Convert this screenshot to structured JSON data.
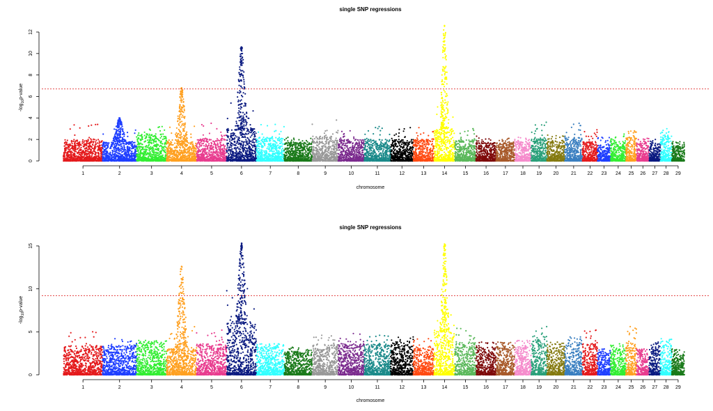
{
  "chart_data": [
    {
      "type": "scatter",
      "title": "single SNP regressions",
      "xlabel": "chromosome",
      "ylabel": "-log10p-value",
      "ylim": [
        0,
        12
      ],
      "yticks": [
        0,
        2,
        4,
        6,
        8,
        10,
        12
      ],
      "threshold": 6.7,
      "categories": [
        "1",
        "2",
        "3",
        "4",
        "5",
        "6",
        "7",
        "8",
        "9",
        "10",
        "11",
        "12",
        "13",
        "14",
        "15",
        "16",
        "17",
        "18",
        "19",
        "20",
        "21",
        "22",
        "23",
        "24",
        "25",
        "26",
        "27",
        "28",
        "29"
      ],
      "peaks": [
        3.4,
        4.0,
        3.2,
        6.8,
        3.5,
        10.6,
        3.4,
        2.2,
        3.8,
        2.8,
        3.2,
        3.1,
        3.1,
        12.6,
        3.0,
        2.3,
        2.1,
        2.2,
        3.6,
        2.4,
        3.5,
        2.9,
        2.2,
        2.5,
        2.8,
        2.1,
        2.0,
        3.0,
        1.8
      ],
      "baseline": [
        2.0,
        1.8,
        2.5,
        1.8,
        2.1,
        3.0,
        2.2,
        1.8,
        2.3,
        2.0,
        2.0,
        2.0,
        2.0,
        3.0,
        2.0,
        1.7,
        1.7,
        1.8,
        2.2,
        1.9,
        2.2,
        1.8,
        1.5,
        1.8,
        2.2,
        1.7,
        1.5,
        2.3,
        1.5
      ]
    },
    {
      "type": "scatter",
      "title": "single SNP regressions",
      "xlabel": "chromosome",
      "ylabel": "-log10p-value",
      "ylim": [
        0,
        15
      ],
      "yticks": [
        0,
        5,
        10,
        15
      ],
      "threshold": 9.2,
      "categories": [
        "1",
        "2",
        "3",
        "4",
        "5",
        "6",
        "7",
        "8",
        "9",
        "10",
        "11",
        "12",
        "13",
        "14",
        "15",
        "16",
        "17",
        "18",
        "19",
        "20",
        "21",
        "22",
        "23",
        "24",
        "25",
        "26",
        "27",
        "28",
        "29"
      ],
      "peaks": [
        5.0,
        4.2,
        4.0,
        12.6,
        5.2,
        15.3,
        3.6,
        3.2,
        4.6,
        4.8,
        4.6,
        4.4,
        4.2,
        15.2,
        5.4,
        3.8,
        3.8,
        4.0,
        5.6,
        3.8,
        4.4,
        5.2,
        3.0,
        3.6,
        5.6,
        3.0,
        3.8,
        4.2,
        3.0
      ],
      "baseline": [
        3.4,
        3.4,
        3.8,
        3.2,
        3.6,
        6.0,
        3.4,
        2.8,
        3.6,
        3.6,
        3.6,
        3.8,
        3.2,
        5.0,
        3.8,
        3.2,
        3.4,
        3.4,
        4.2,
        3.4,
        3.8,
        3.6,
        2.6,
        3.0,
        3.8,
        2.8,
        3.2,
        3.6,
        2.6
      ]
    }
  ],
  "colors": [
    "#e41a1c",
    "#1f3fff",
    "#33ee33",
    "#ffa020",
    "#e83d8f",
    "#0a1a80",
    "#33ffff",
    "#1a7a1a",
    "#999999",
    "#7b2b8e",
    "#1b8a8a",
    "#000000",
    "#ff4a12",
    "#ffff00",
    "#5bb85b",
    "#7e0a0a",
    "#a85a2a",
    "#f58ccc",
    "#2aa07a",
    "#857a10",
    "#3a7fc0",
    "#e41a1c",
    "#1f3fff",
    "#33ee33",
    "#ffa020",
    "#e83d8f",
    "#0a1a80",
    "#33ffff",
    "#1a7a1a"
  ],
  "chrom_widths": [
    158,
    137,
    121,
    121,
    121,
    120,
    112,
    113,
    105,
    104,
    107,
    91,
    84,
    84,
    85,
    81,
    75,
    66,
    64,
    72,
    71,
    61,
    52,
    62,
    43,
    51,
    45,
    46,
    51
  ]
}
